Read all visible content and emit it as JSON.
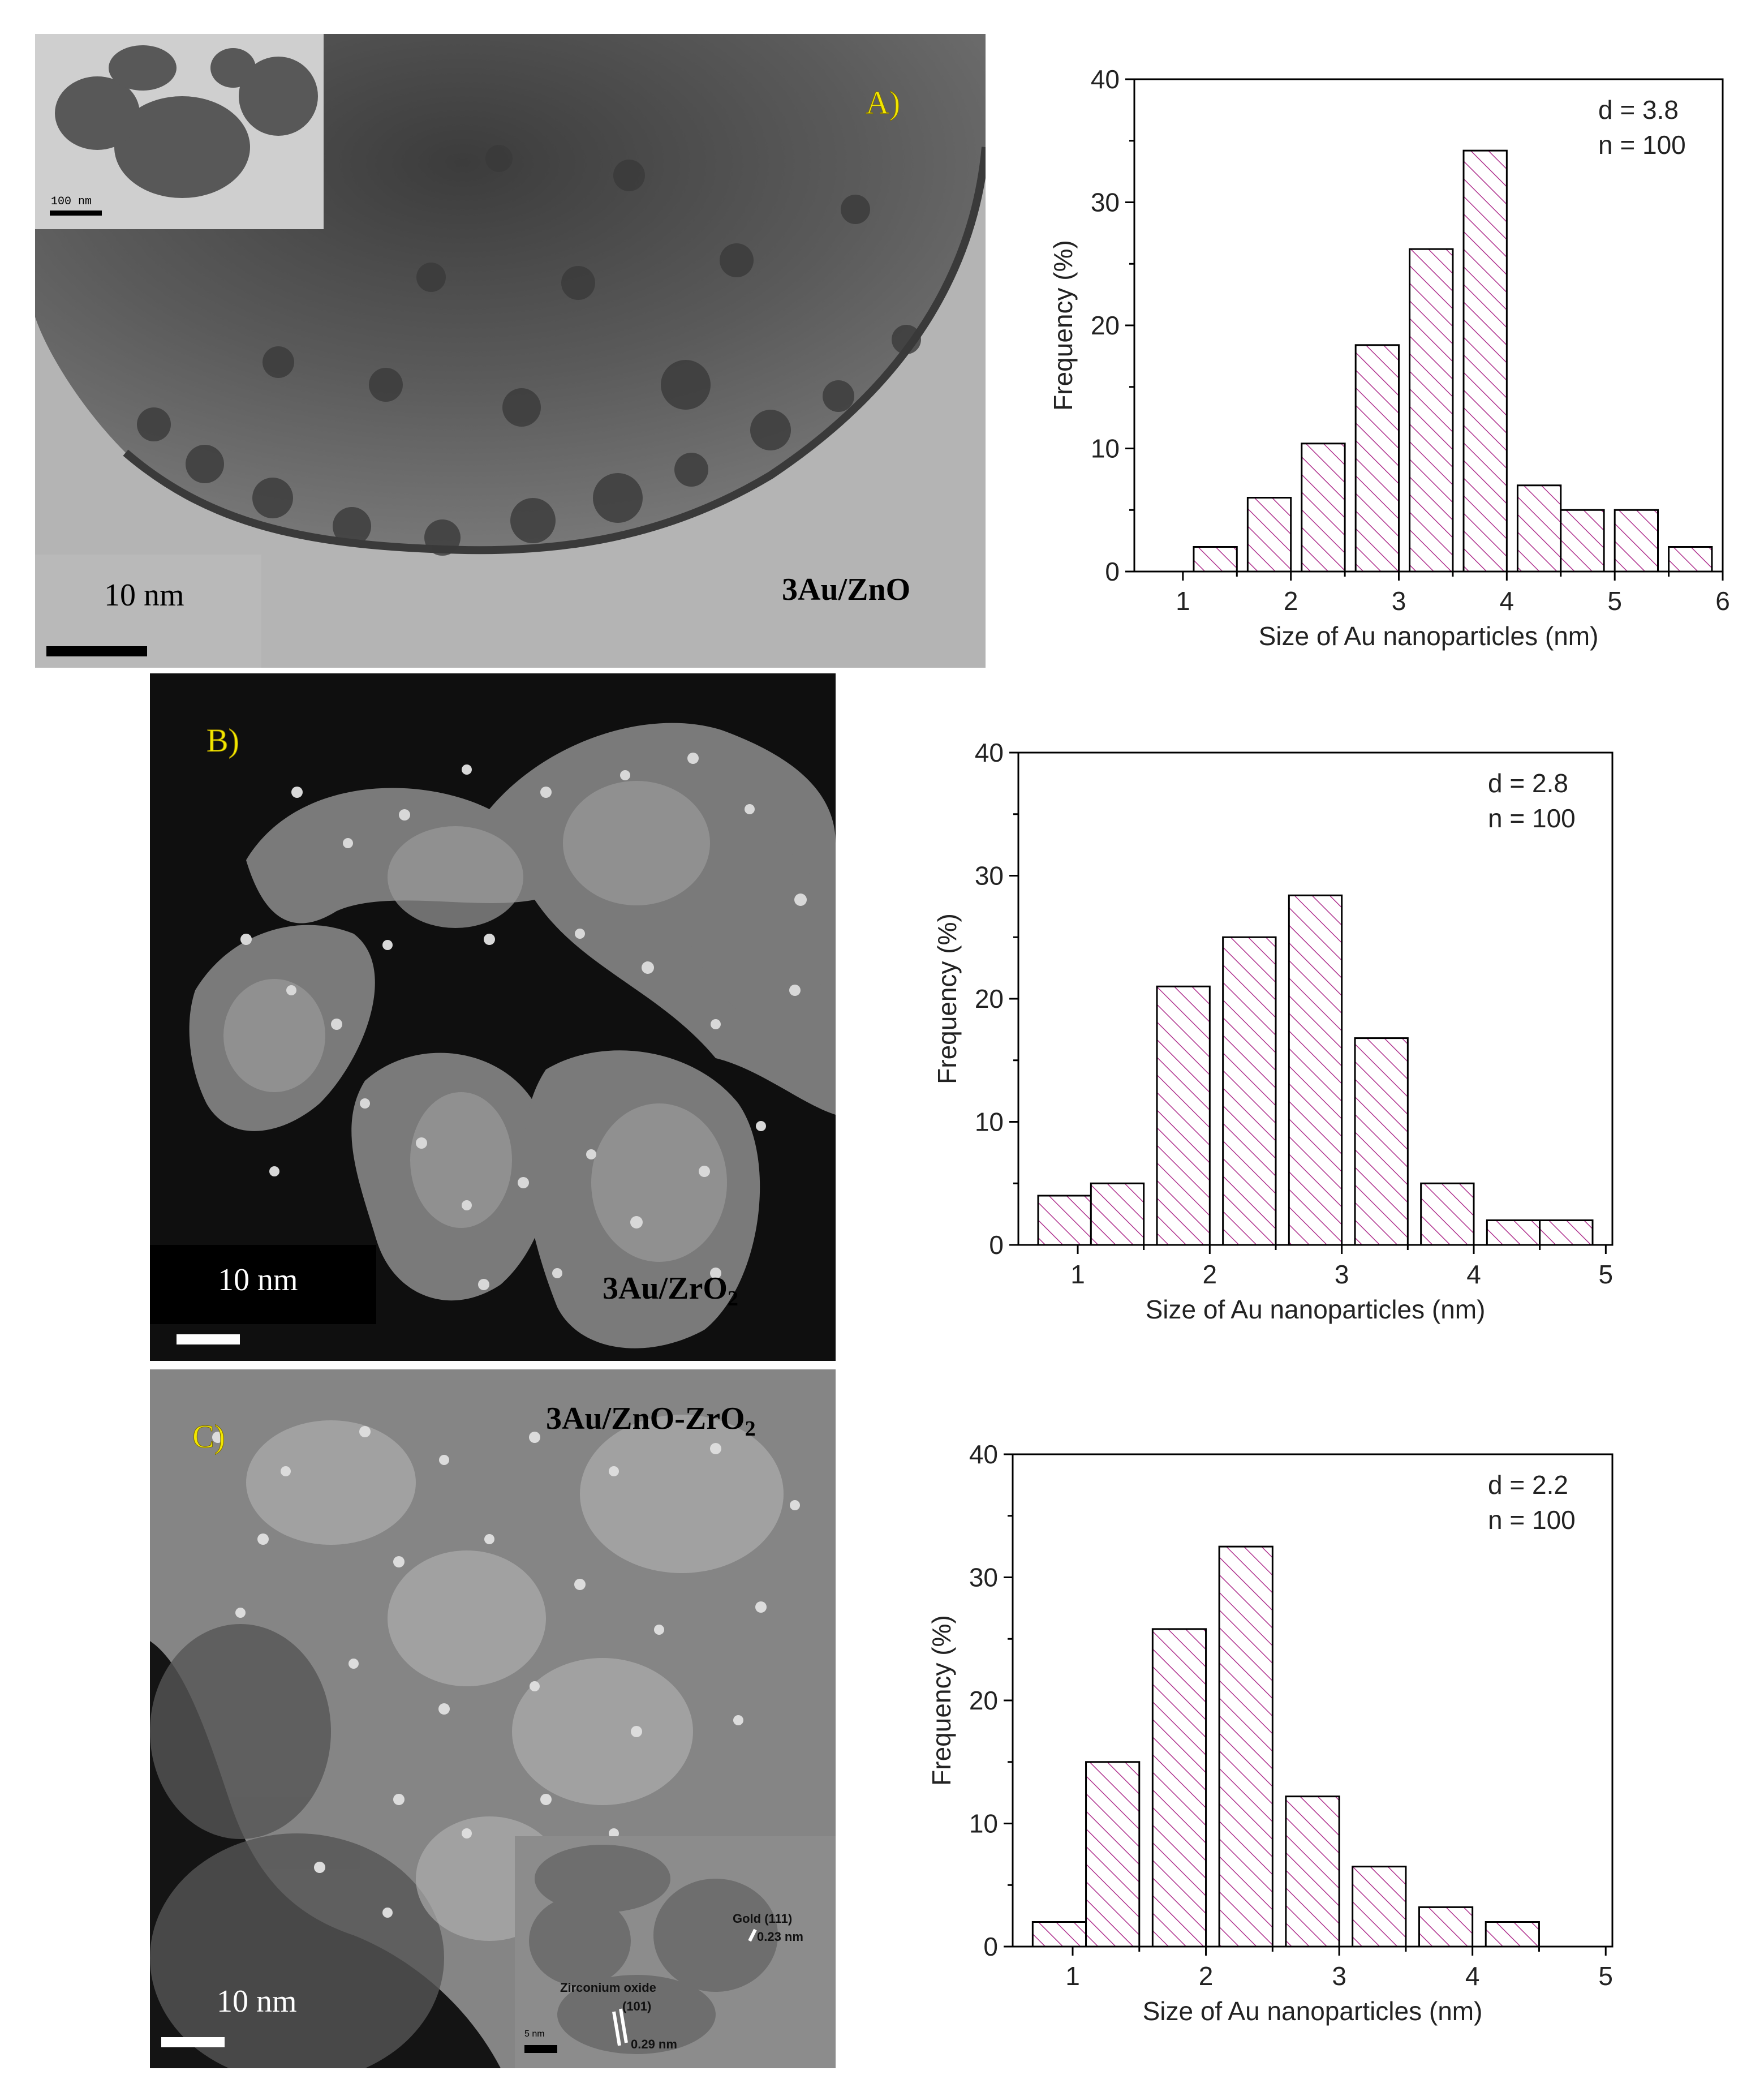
{
  "panels": {
    "a": {
      "letter": "A)",
      "sample": "3Au/ZnO",
      "scale_text": "10 nm",
      "inset_scale_text": "100 nm"
    },
    "b": {
      "letter": "B)",
      "sample_main": "3Au/ZrO",
      "sample_sub": "2",
      "scale_text": "10 nm"
    },
    "c": {
      "letter": "C)",
      "sample_main": "3Au/ZnO-ZrO",
      "sample_sub": "2",
      "scale_text": "10 nm",
      "inset": {
        "gold_label": "Gold (111)",
        "gold_spacing": "0.23 nm",
        "zr_label": "Zirconium oxide",
        "zr_plane": "(101)",
        "zr_spacing": "0.29 nm",
        "scale_text": "5 nm"
      }
    }
  },
  "colors": {
    "bar_hatch": "#b0338f",
    "bar_outline": "#000000",
    "label_yellow": "#f2e600"
  },
  "chart_data": [
    {
      "type": "bar",
      "xlabel": "Size of Au nanoparticles (nm)",
      "ylabel": "Frequency (%)",
      "xlim": [
        0.55,
        6
      ],
      "ylim": [
        0,
        40
      ],
      "xticks": [
        1,
        2,
        3,
        4,
        5,
        6
      ],
      "yticks": [
        0,
        10,
        20,
        30,
        40
      ],
      "bin_width": 0.4,
      "annotation": [
        "d = 3.8",
        "n = 100"
      ],
      "bins": [
        {
          "x": 1.3,
          "value": 2
        },
        {
          "x": 1.8,
          "value": 6
        },
        {
          "x": 2.3,
          "value": 10.4
        },
        {
          "x": 2.8,
          "value": 18.4
        },
        {
          "x": 3.3,
          "value": 26.2
        },
        {
          "x": 3.8,
          "value": 34.2
        },
        {
          "x": 4.3,
          "value": 7
        },
        {
          "x": 4.7,
          "value": 5
        },
        {
          "x": 5.2,
          "value": 5
        },
        {
          "x": 5.7,
          "value": 2
        }
      ]
    },
    {
      "type": "bar",
      "xlabel": "Size of Au nanoparticles (nm)",
      "ylabel": "Frequency (%)",
      "xlim": [
        0.55,
        5.05
      ],
      "ylim": [
        0,
        40
      ],
      "xticks": [
        1,
        2,
        3,
        4,
        5
      ],
      "yticks": [
        0,
        10,
        20,
        30,
        40
      ],
      "bin_width": 0.4,
      "annotation": [
        "d = 2.8",
        "n = 100"
      ],
      "bins": [
        {
          "x": 0.9,
          "value": 4
        },
        {
          "x": 1.3,
          "value": 5
        },
        {
          "x": 1.8,
          "value": 21
        },
        {
          "x": 2.3,
          "value": 25
        },
        {
          "x": 2.8,
          "value": 28.4
        },
        {
          "x": 3.3,
          "value": 16.8
        },
        {
          "x": 3.8,
          "value": 5
        },
        {
          "x": 4.3,
          "value": 2
        },
        {
          "x": 4.7,
          "value": 2
        }
      ]
    },
    {
      "type": "bar",
      "xlabel": "Size of Au nanoparticles (nm)",
      "ylabel": "Frequency (%)",
      "xlim": [
        0.55,
        5.05
      ],
      "ylim": [
        0,
        40
      ],
      "xticks": [
        1,
        2,
        3,
        4,
        5
      ],
      "yticks": [
        0,
        10,
        20,
        30,
        40
      ],
      "bin_width": 0.4,
      "annotation": [
        "d = 2.2",
        "n = 100"
      ],
      "bins": [
        {
          "x": 0.9,
          "value": 2
        },
        {
          "x": 1.3,
          "value": 15
        },
        {
          "x": 1.8,
          "value": 25.8
        },
        {
          "x": 2.3,
          "value": 32.5
        },
        {
          "x": 2.8,
          "value": 12.2
        },
        {
          "x": 3.3,
          "value": 6.5
        },
        {
          "x": 3.8,
          "value": 3.2
        },
        {
          "x": 4.3,
          "value": 2
        }
      ]
    }
  ]
}
